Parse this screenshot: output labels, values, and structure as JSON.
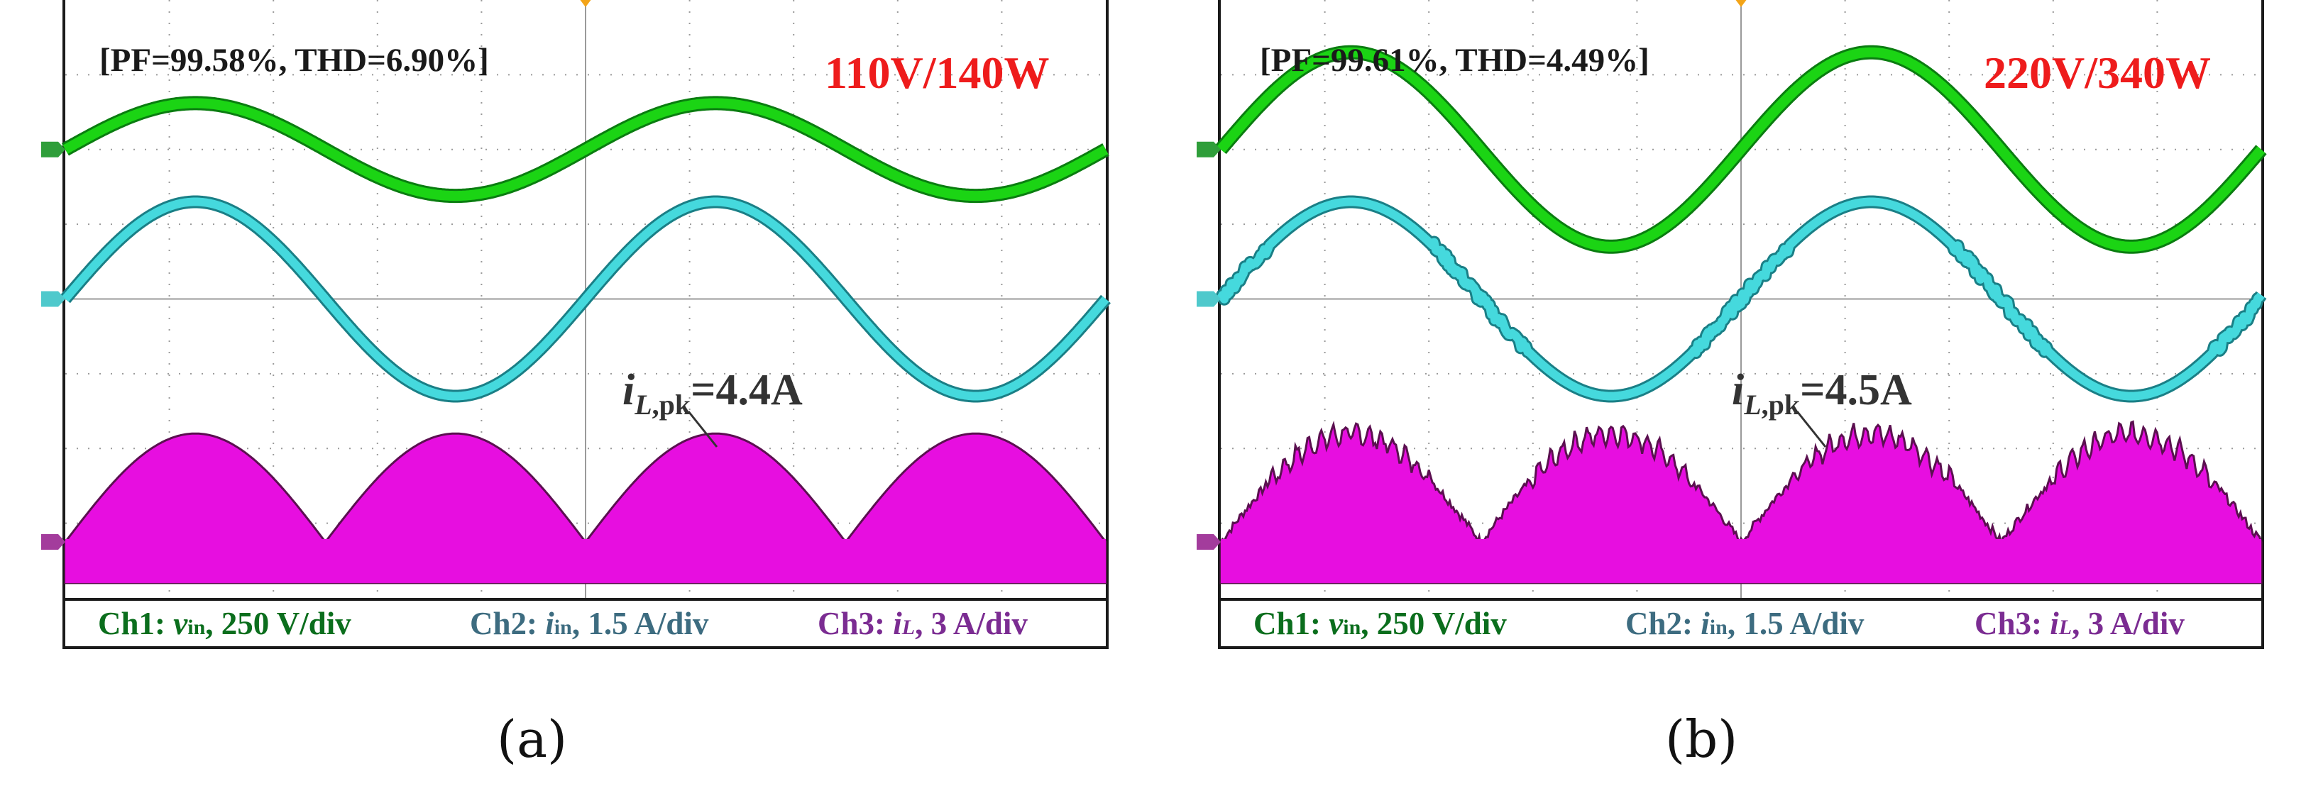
{
  "figure": {
    "colors": {
      "ch1": "#1bd414",
      "ch1_edge": "#0a7d10",
      "ch2": "#45d9dd",
      "ch2_edge": "#1a7f86",
      "ch3": "#e70ee0",
      "ch3_edge": "#5b1050",
      "grid": "#9a9a9a",
      "rating": "#ee1c1c"
    },
    "legend": {
      "ch1_prefix": "Ch1: ",
      "ch1_symbol": "v",
      "ch1_sub": "in",
      "ch1_suffix": ", 250 V/div",
      "ch2_prefix": "Ch2: ",
      "ch2_symbol": "i",
      "ch2_sub": "in",
      "ch2_suffix": ", 1.5 A/div",
      "ch3_prefix": "Ch3: ",
      "ch3_symbol": "i",
      "ch3_sub": "L",
      "ch3_suffix": ", 3 A/div"
    },
    "annotation_symbol": "i",
    "annotation_sub": "L,pk"
  },
  "chart_data": [
    {
      "type": "line",
      "caption": "(a)",
      "title": "110V/140W",
      "metrics_label": "[PF=99.58%, THD=6.90%]",
      "annotation_value": "=4.4A",
      "x_divisions": 10,
      "y_divisions": 8,
      "cycles_shown": 2,
      "series": [
        {
          "name": "Ch1: v_in",
          "scale": "250 V/div",
          "waveform": "sine",
          "offset_div": 6.0,
          "amplitude_div": 0.62
        },
        {
          "name": "Ch2: i_in",
          "scale": "1.5 A/div",
          "waveform": "sine",
          "offset_div": 4.0,
          "amplitude_div": 1.3
        },
        {
          "name": "Ch3: i_L",
          "scale": "3 A/div",
          "waveform": "rectified-sine",
          "offset_div": 0.75,
          "amplitude_div": 1.45,
          "peak_A": 4.4
        }
      ],
      "noise": 0.0
    },
    {
      "type": "line",
      "caption": "(b)",
      "title": "220V/340W",
      "metrics_label": "[PF=99.61%, THD=4.49%]",
      "annotation_value": "=4.5A",
      "x_divisions": 10,
      "y_divisions": 8,
      "cycles_shown": 2,
      "series": [
        {
          "name": "Ch1: v_in",
          "scale": "250 V/div",
          "waveform": "sine",
          "offset_div": 6.0,
          "amplitude_div": 1.3
        },
        {
          "name": "Ch2: i_in",
          "scale": "1.5 A/div",
          "waveform": "sine",
          "offset_div": 4.0,
          "amplitude_div": 1.3
        },
        {
          "name": "Ch3: i_L",
          "scale": "3 A/div",
          "waveform": "rectified-sine",
          "offset_div": 0.75,
          "amplitude_div": 1.45,
          "peak_A": 4.5
        }
      ],
      "noise": 1.0
    }
  ]
}
